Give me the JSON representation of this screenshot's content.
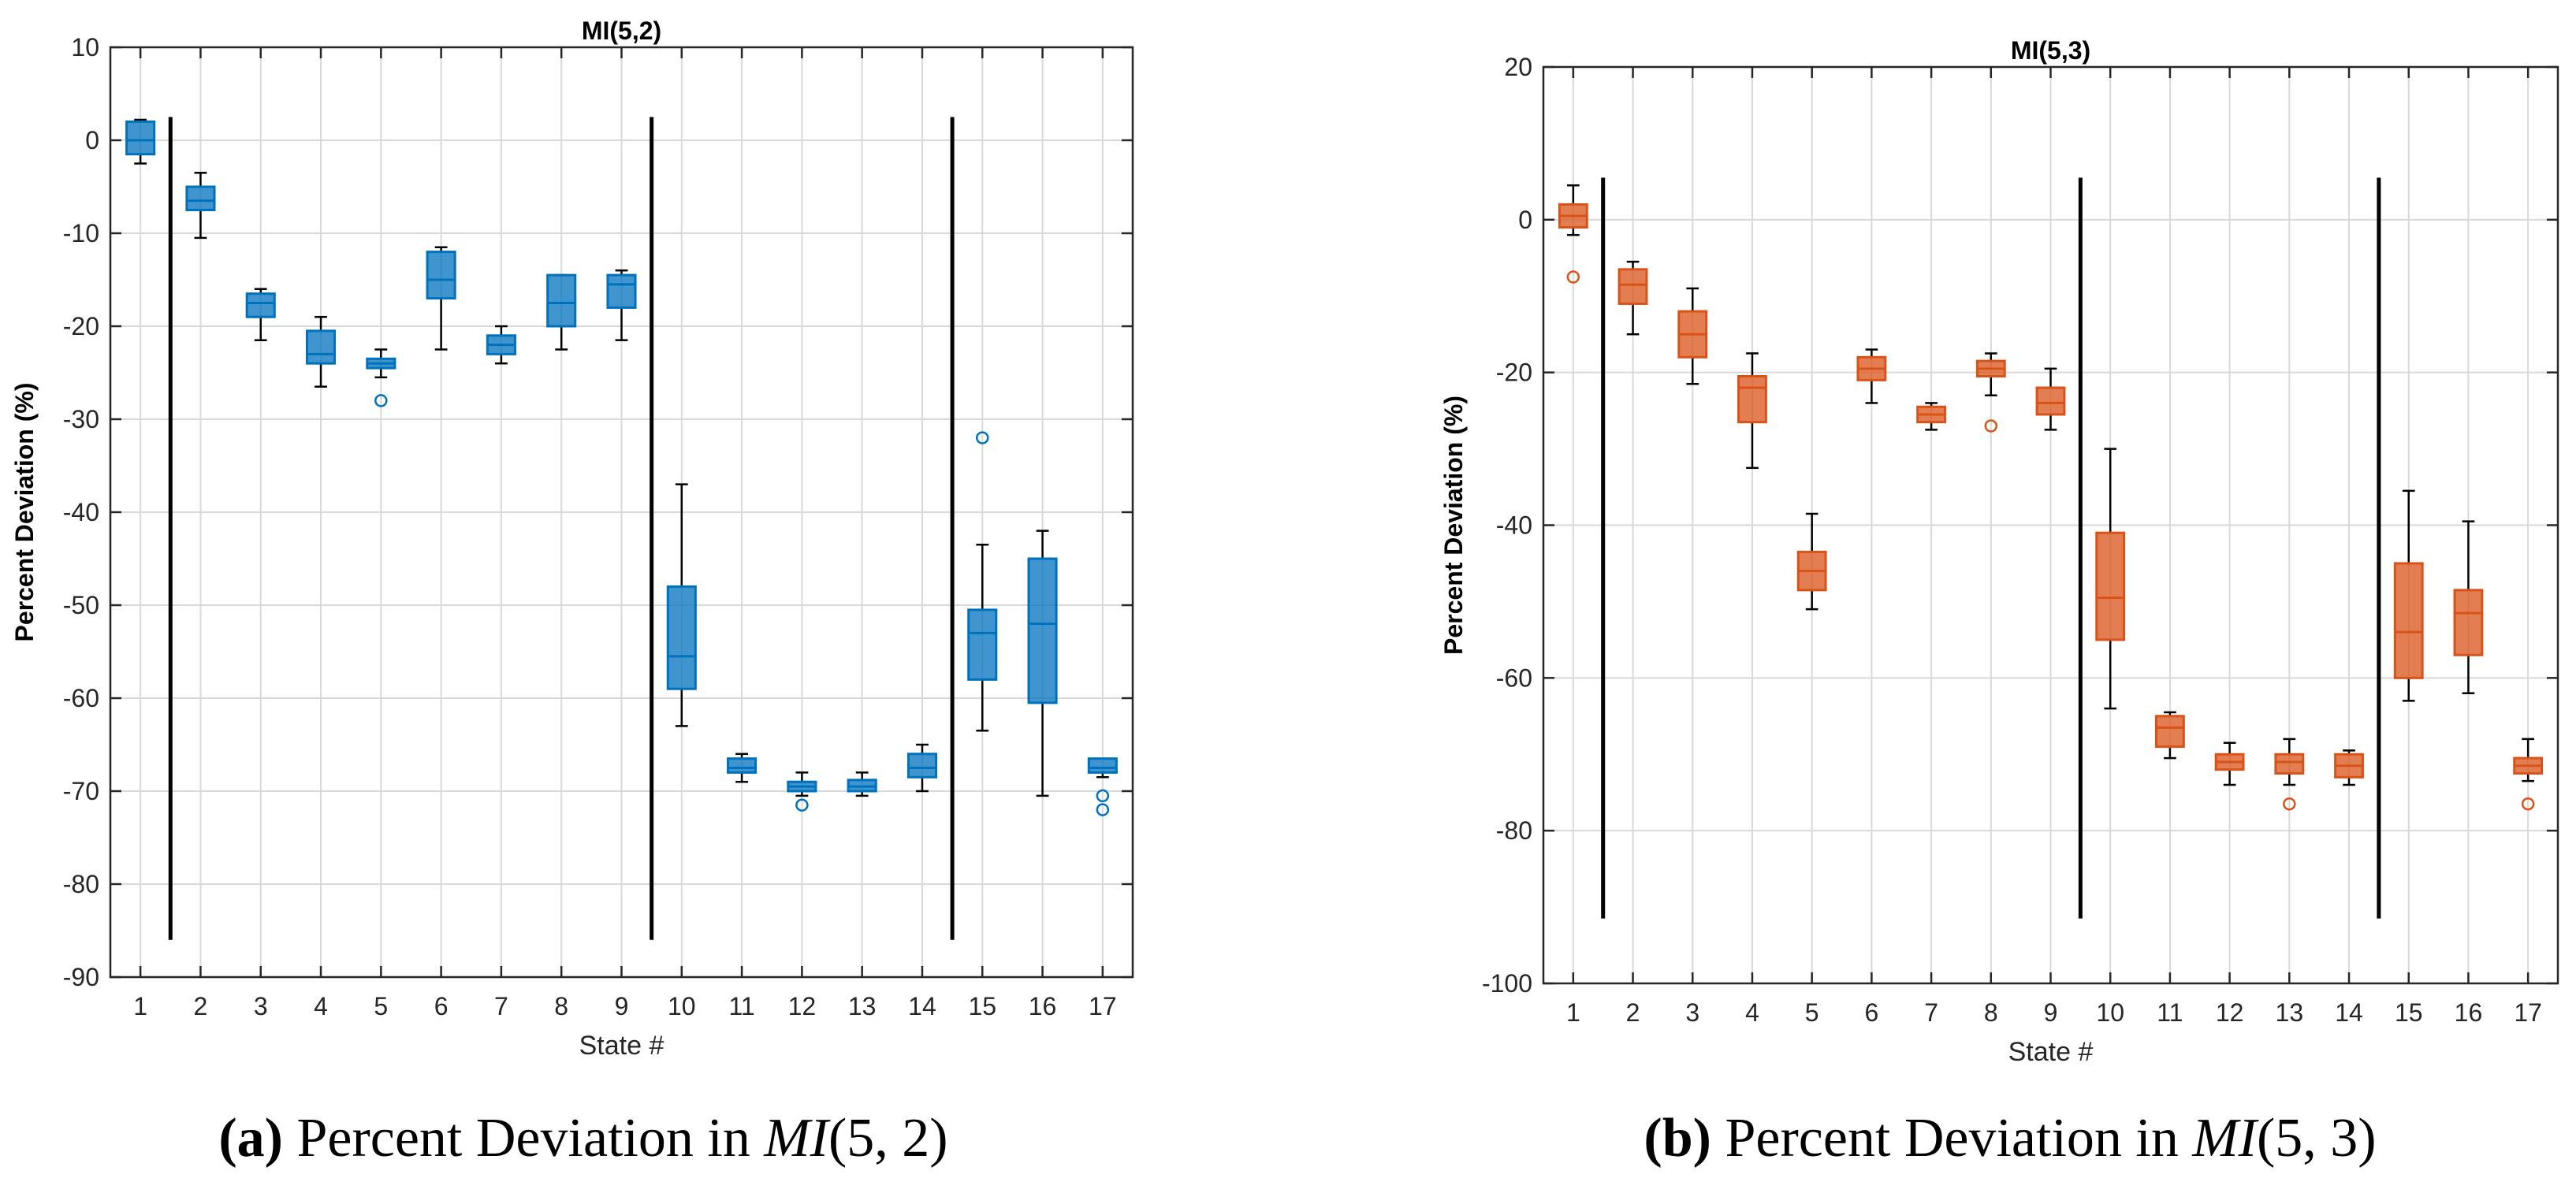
{
  "chart_data": [
    {
      "type": "box",
      "title": "MI(5,2)",
      "xlabel": "State #",
      "ylabel": "Percent Deviation (%)",
      "ylim": [
        -90,
        10
      ],
      "yticks": [
        10,
        0,
        -10,
        -20,
        -30,
        -40,
        -50,
        -60,
        -70,
        -80,
        -90
      ],
      "categories": [
        "1",
        "2",
        "3",
        "4",
        "5",
        "6",
        "7",
        "8",
        "9",
        "10",
        "11",
        "12",
        "13",
        "14",
        "15",
        "16",
        "17"
      ],
      "grid": true,
      "color": "#0072BD",
      "separators_after_state": [
        1,
        9,
        14
      ],
      "separator_range": [
        -86,
        2.5
      ],
      "boxes": [
        {
          "state": "1",
          "min": -2.5,
          "q1": -1.5,
          "median": 0,
          "q3": 2,
          "max": 2.2,
          "outliers": []
        },
        {
          "state": "2",
          "min": -10.5,
          "q1": -7.5,
          "median": -6.5,
          "q3": -5,
          "max": -3.5,
          "outliers": []
        },
        {
          "state": "3",
          "min": -21.5,
          "q1": -19,
          "median": -17.5,
          "q3": -16.5,
          "max": -16,
          "outliers": []
        },
        {
          "state": "4",
          "min": -26.5,
          "q1": -24,
          "median": -23,
          "q3": -20.5,
          "max": -19,
          "outliers": []
        },
        {
          "state": "5",
          "min": -25.5,
          "q1": -24.5,
          "median": -24,
          "q3": -23.5,
          "max": -22.5,
          "outliers": [
            -28
          ]
        },
        {
          "state": "6",
          "min": -22.5,
          "q1": -17,
          "median": -15,
          "q3": -12,
          "max": -11.5,
          "outliers": []
        },
        {
          "state": "7",
          "min": -24,
          "q1": -23,
          "median": -22,
          "q3": -21,
          "max": -20,
          "outliers": []
        },
        {
          "state": "8",
          "min": -22.5,
          "q1": -20,
          "median": -17.5,
          "q3": -14.5,
          "max": -14.5,
          "outliers": []
        },
        {
          "state": "9",
          "min": -21.5,
          "q1": -18,
          "median": -15.5,
          "q3": -14.5,
          "max": -14,
          "outliers": []
        },
        {
          "state": "10",
          "min": -63,
          "q1": -59,
          "median": -55.5,
          "q3": -48,
          "max": -37,
          "outliers": []
        },
        {
          "state": "11",
          "min": -69,
          "q1": -68,
          "median": -67.5,
          "q3": -66.5,
          "max": -66,
          "outliers": []
        },
        {
          "state": "12",
          "min": -70.5,
          "q1": -70,
          "median": -69.5,
          "q3": -69,
          "max": -68,
          "outliers": [
            -71.5
          ]
        },
        {
          "state": "13",
          "min": -70.5,
          "q1": -70,
          "median": -69.5,
          "q3": -68.8,
          "max": -68,
          "outliers": []
        },
        {
          "state": "14",
          "min": -70,
          "q1": -68.5,
          "median": -67.5,
          "q3": -66,
          "max": -65,
          "outliers": []
        },
        {
          "state": "15",
          "min": -63.5,
          "q1": -58,
          "median": -53,
          "q3": -50.5,
          "max": -43.5,
          "outliers": [
            -32
          ]
        },
        {
          "state": "16",
          "min": -70.5,
          "q1": -60.5,
          "median": -52,
          "q3": -45,
          "max": -42,
          "outliers": []
        },
        {
          "state": "17",
          "min": -68.5,
          "q1": -68,
          "median": -67.5,
          "q3": -66.5,
          "max": -66.5,
          "outliers": [
            -70.5,
            -72
          ]
        }
      ]
    },
    {
      "type": "box",
      "title": "MI(5,3)",
      "xlabel": "State #",
      "ylabel": "Percent Deviation (%)",
      "ylim": [
        -100,
        20
      ],
      "yticks": [
        20,
        0,
        -20,
        -40,
        -60,
        -80,
        -100
      ],
      "categories": [
        "1",
        "2",
        "3",
        "4",
        "5",
        "6",
        "7",
        "8",
        "9",
        "10",
        "11",
        "12",
        "13",
        "14",
        "15",
        "16",
        "17"
      ],
      "grid": true,
      "color": "#D95319",
      "separators_after_state": [
        1,
        9,
        14
      ],
      "separator_range": [
        -91.5,
        5.5
      ],
      "boxes": [
        {
          "state": "1",
          "min": -2,
          "q1": -1,
          "median": 0.5,
          "q3": 2,
          "max": 4.5,
          "outliers": [
            -7.5
          ]
        },
        {
          "state": "2",
          "min": -15,
          "q1": -11,
          "median": -8.5,
          "q3": -6.5,
          "max": -5.5,
          "outliers": []
        },
        {
          "state": "3",
          "min": -21.5,
          "q1": -18,
          "median": -15,
          "q3": -12,
          "max": -9,
          "outliers": []
        },
        {
          "state": "4",
          "min": -32.5,
          "q1": -26.5,
          "median": -22,
          "q3": -20.5,
          "max": -17.5,
          "outliers": []
        },
        {
          "state": "5",
          "min": -51,
          "q1": -48.5,
          "median": -46,
          "q3": -43.5,
          "max": -38.5,
          "outliers": []
        },
        {
          "state": "6",
          "min": -24,
          "q1": -21,
          "median": -19.5,
          "q3": -18,
          "max": -17,
          "outliers": []
        },
        {
          "state": "7",
          "min": -27.5,
          "q1": -26.5,
          "median": -25.5,
          "q3": -24.5,
          "max": -24,
          "outliers": []
        },
        {
          "state": "8",
          "min": -23,
          "q1": -20.5,
          "median": -19.5,
          "q3": -18.5,
          "max": -17.5,
          "outliers": [
            -27
          ]
        },
        {
          "state": "9",
          "min": -27.5,
          "q1": -25.5,
          "median": -24,
          "q3": -22,
          "max": -19.5,
          "outliers": []
        },
        {
          "state": "10",
          "min": -64,
          "q1": -55,
          "median": -49.5,
          "q3": -41,
          "max": -30,
          "outliers": []
        },
        {
          "state": "11",
          "min": -70.5,
          "q1": -69,
          "median": -66.5,
          "q3": -65,
          "max": -64.5,
          "outliers": []
        },
        {
          "state": "12",
          "min": -74,
          "q1": -72,
          "median": -71,
          "q3": -70,
          "max": -68.5,
          "outliers": []
        },
        {
          "state": "13",
          "min": -74,
          "q1": -72.5,
          "median": -71,
          "q3": -70,
          "max": -68,
          "outliers": [
            -76.5
          ]
        },
        {
          "state": "14",
          "min": -74,
          "q1": -73,
          "median": -71.5,
          "q3": -70,
          "max": -69.5,
          "outliers": []
        },
        {
          "state": "15",
          "min": -63,
          "q1": -60,
          "median": -54,
          "q3": -45,
          "max": -35.5,
          "outliers": []
        },
        {
          "state": "16",
          "min": -62,
          "q1": -57,
          "median": -51.5,
          "q3": -48.5,
          "max": -39.5,
          "outliers": []
        },
        {
          "state": "17",
          "min": -73.5,
          "q1": -72.5,
          "median": -71.5,
          "q3": -70.5,
          "max": -68,
          "outliers": [
            -76.5
          ]
        }
      ]
    }
  ],
  "captions": [
    {
      "label": "(a)",
      "text": " Percent Deviation in ",
      "math": "MI",
      "math_args": "(5, 2)"
    },
    {
      "label": "(b)",
      "text": " Percent Deviation in ",
      "math": "MI",
      "math_args": "(5, 3)"
    }
  ]
}
